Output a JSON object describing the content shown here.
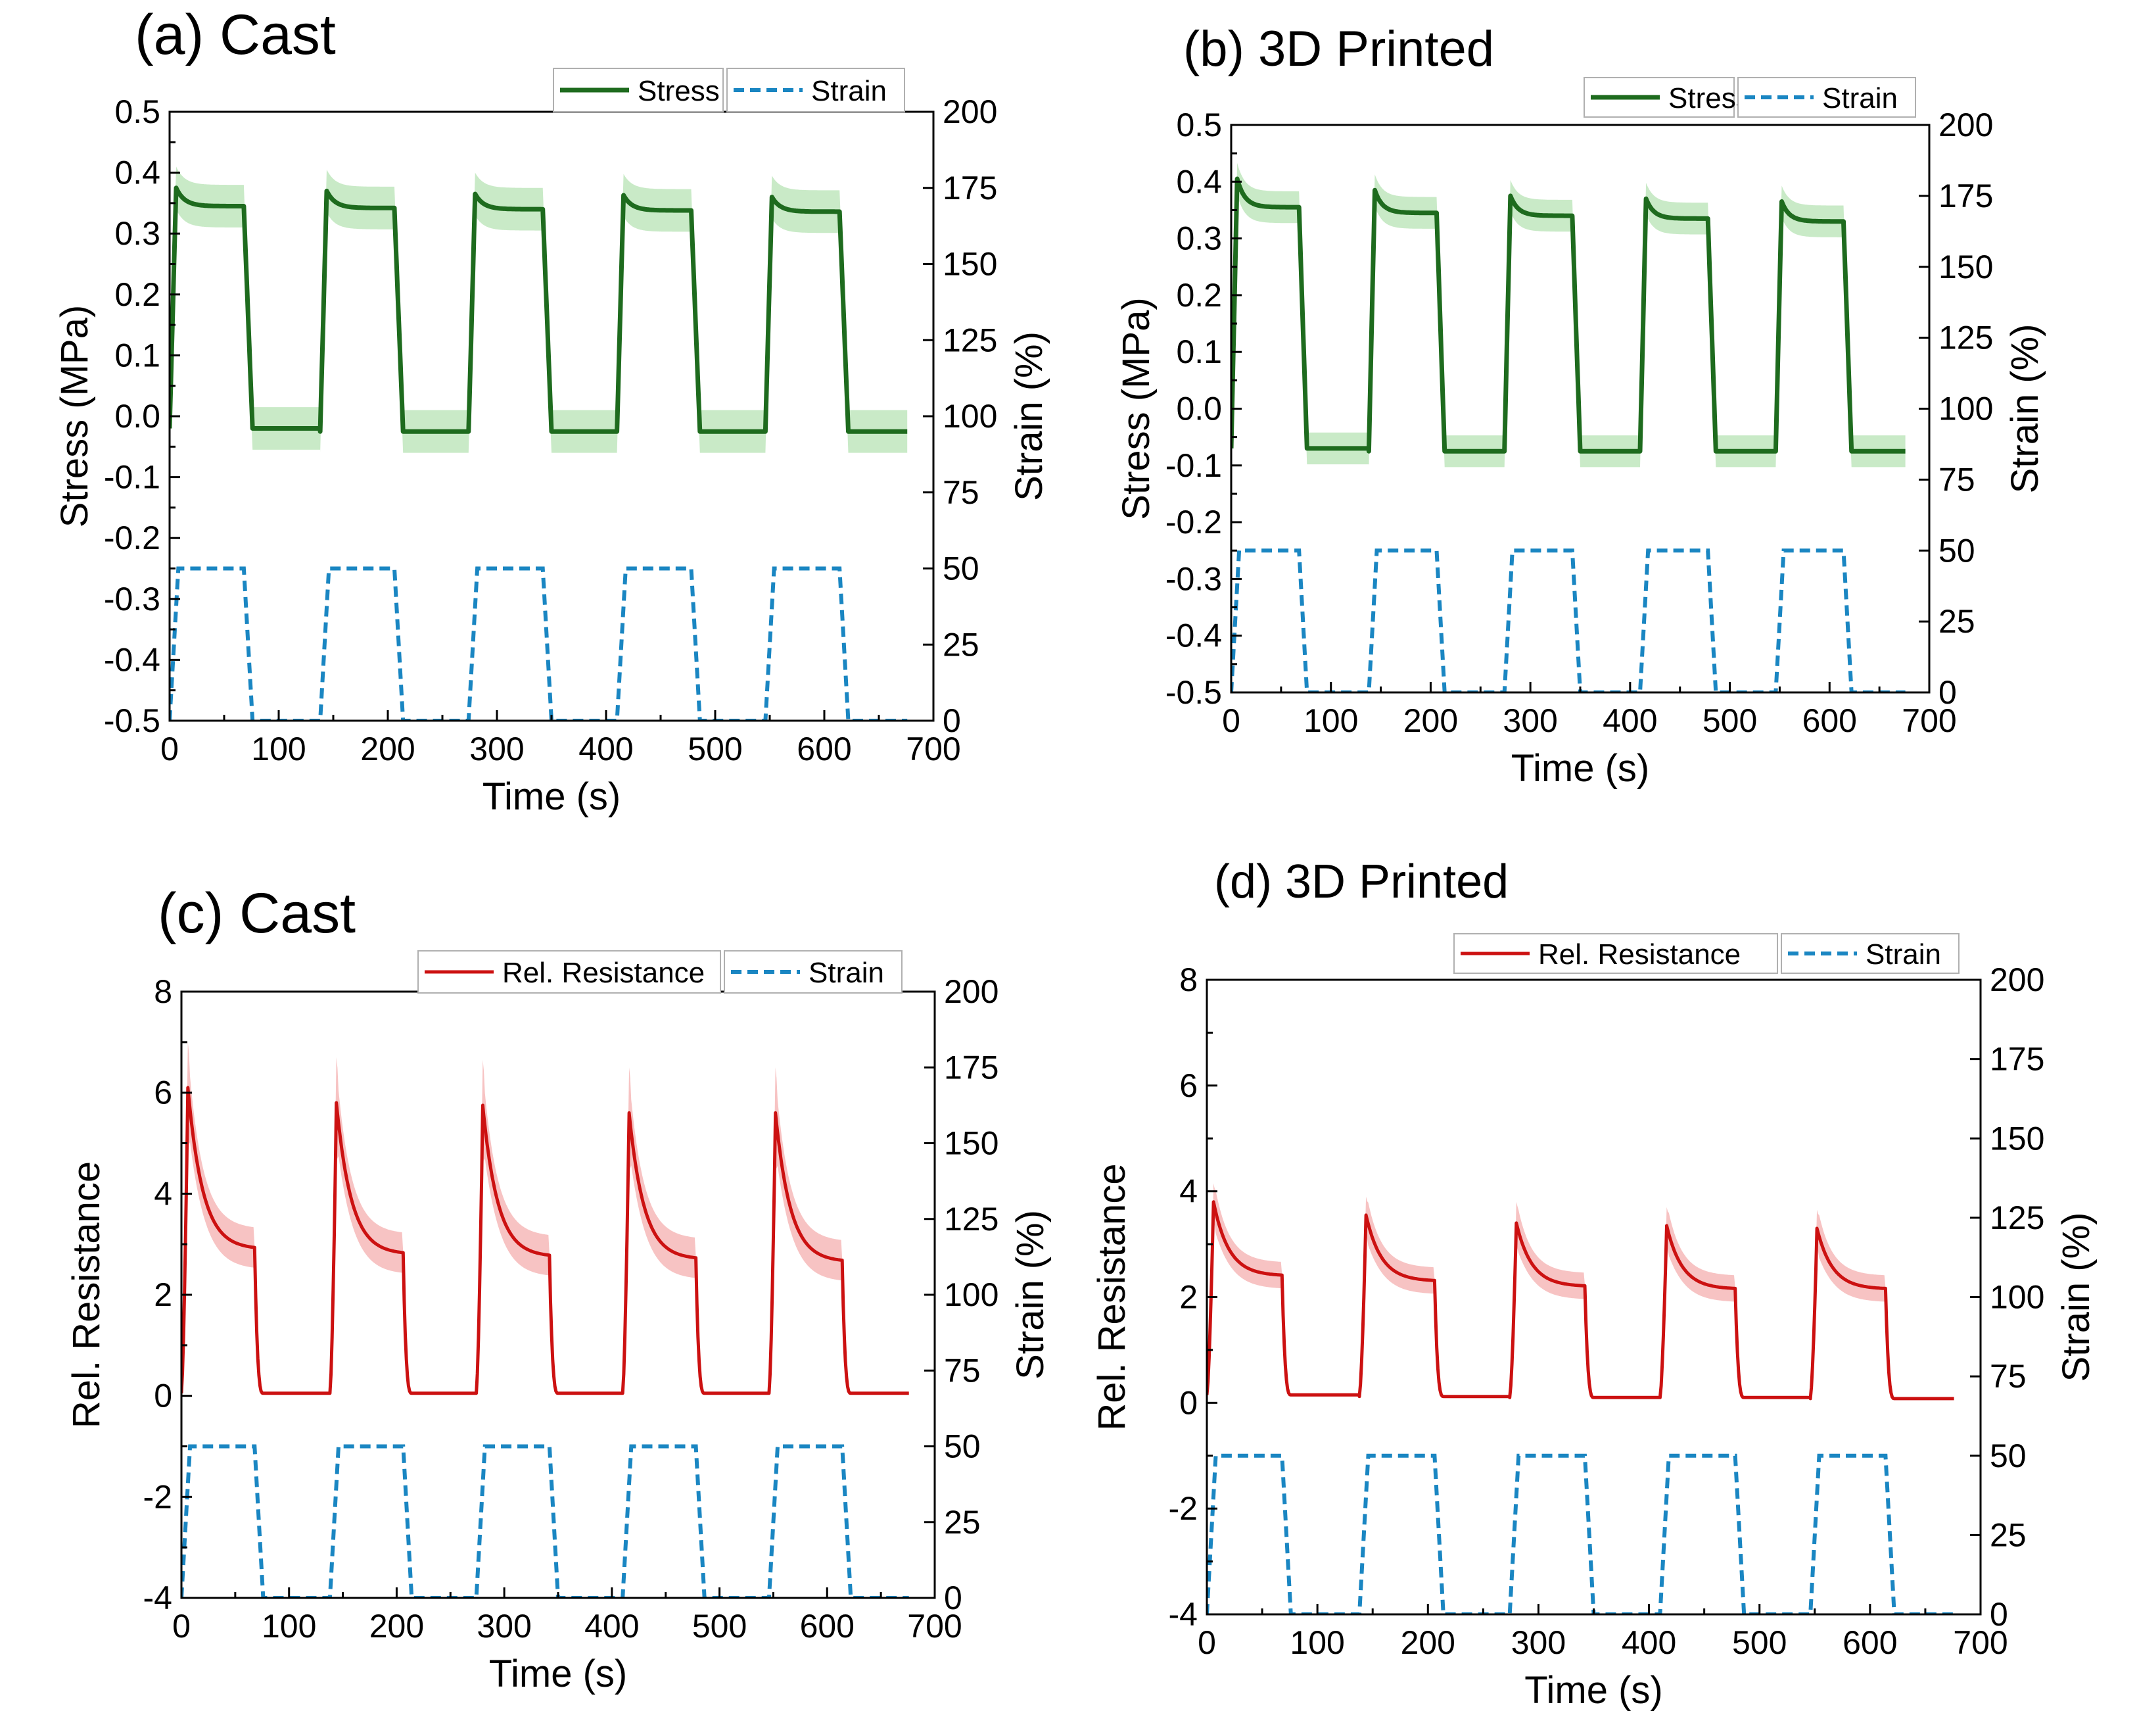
{
  "figure": {
    "description_free": true
  },
  "colors": {
    "stress": "#1e6b1e",
    "stress_band": "#b7e3b4",
    "strain": "#1a86c2",
    "resistance": "#cc1111",
    "resistance_band": "#f6b8b8",
    "axis": "#000000"
  },
  "chart_data": [
    {
      "id": "a",
      "type": "line",
      "panel_title": "(a) Cast",
      "xlabel": "Time (s)",
      "ylabel_left": "Stress (MPa)",
      "ylabel_right": "Strain (%)",
      "xlim": [
        0,
        700
      ],
      "x_ticks": [
        "0",
        "100",
        "200",
        "300",
        "400",
        "500",
        "600",
        "700"
      ],
      "ylim_left": [
        -0.5,
        0.5
      ],
      "y_ticks_left": [
        "-0.5",
        "-0.4",
        "-0.3",
        "-0.2",
        "-0.1",
        "0.0",
        "0.1",
        "0.2",
        "0.3",
        "0.4",
        "0.5"
      ],
      "ylim_right": [
        0,
        200
      ],
      "y_ticks_right": [
        "0",
        "25",
        "50",
        "75",
        "100",
        "125",
        "150",
        "175",
        "200"
      ],
      "legend": [
        "Stress",
        "Strain"
      ],
      "legend_position": "top-right",
      "primary_series": {
        "name": "Stress",
        "kind": "stress",
        "cycles": [
          {
            "start": 0,
            "peak": 0.375,
            "plateau": 0.345,
            "end": 68,
            "base": -0.02,
            "off_end": 138
          },
          {
            "start": 138,
            "peak": 0.37,
            "plateau": 0.342,
            "end": 206,
            "base": -0.025,
            "off_end": 274
          },
          {
            "start": 274,
            "peak": 0.365,
            "plateau": 0.34,
            "end": 342,
            "base": -0.025,
            "off_end": 410
          },
          {
            "start": 410,
            "peak": 0.363,
            "plateau": 0.338,
            "end": 478,
            "base": -0.025,
            "off_end": 546
          },
          {
            "start": 546,
            "peak": 0.36,
            "plateau": 0.336,
            "end": 614,
            "base": -0.025,
            "off_end": 676
          }
        ],
        "band": 0.035
      },
      "strain_series": {
        "name": "Strain",
        "max": 50,
        "min": 0,
        "cycles": [
          [
            0,
            68
          ],
          [
            138,
            206
          ],
          [
            274,
            342
          ],
          [
            410,
            478
          ],
          [
            546,
            614
          ]
        ],
        "ramp": 8,
        "end": 676
      }
    },
    {
      "id": "b",
      "type": "line",
      "panel_title": "(b) 3D Printed",
      "xlabel": "Time (s)",
      "ylabel_left": "Stress (MPa)",
      "ylabel_right": "Strain (%)",
      "xlim": [
        0,
        700
      ],
      "x_ticks": [
        "0",
        "100",
        "200",
        "300",
        "400",
        "500",
        "600",
        "700"
      ],
      "ylim_left": [
        -0.5,
        0.5
      ],
      "y_ticks_left": [
        "-0.5",
        "-0.4",
        "-0.3",
        "-0.2",
        "-0.1",
        "0.0",
        "0.1",
        "0.2",
        "0.3",
        "0.4",
        "0.5"
      ],
      "ylim_right": [
        0,
        200
      ],
      "y_ticks_right": [
        "0",
        "25",
        "50",
        "75",
        "100",
        "125",
        "150",
        "175",
        "200"
      ],
      "legend": [
        "Stress",
        "Strain"
      ],
      "legend_position": "top-right",
      "primary_series": {
        "name": "Stress",
        "kind": "stress",
        "cycles": [
          {
            "start": 0,
            "peak": 0.405,
            "plateau": 0.355,
            "end": 68,
            "base": -0.07,
            "off_end": 138
          },
          {
            "start": 138,
            "peak": 0.385,
            "plateau": 0.345,
            "end": 206,
            "base": -0.075,
            "off_end": 274
          },
          {
            "start": 274,
            "peak": 0.375,
            "plateau": 0.34,
            "end": 342,
            "base": -0.075,
            "off_end": 410
          },
          {
            "start": 410,
            "peak": 0.37,
            "plateau": 0.335,
            "end": 478,
            "base": -0.075,
            "off_end": 546
          },
          {
            "start": 546,
            "peak": 0.365,
            "plateau": 0.33,
            "end": 614,
            "base": -0.075,
            "off_end": 676
          }
        ],
        "band": 0.028
      },
      "strain_series": {
        "name": "Strain",
        "max": 50,
        "min": 0,
        "cycles": [
          [
            0,
            68
          ],
          [
            138,
            206
          ],
          [
            274,
            342
          ],
          [
            410,
            478
          ],
          [
            546,
            614
          ]
        ],
        "ramp": 8,
        "end": 676
      }
    },
    {
      "id": "c",
      "type": "line",
      "panel_title": "(c) Cast",
      "xlabel": "Time (s)",
      "ylabel_left": "Rel. Resistance",
      "ylabel_right": "Strain (%)",
      "xlim": [
        0,
        700
      ],
      "x_ticks": [
        "0",
        "100",
        "200",
        "300",
        "400",
        "500",
        "600",
        "700"
      ],
      "ylim_left": [
        -4,
        8
      ],
      "y_ticks_left": [
        "-4",
        "-2",
        "0",
        "2",
        "4",
        "6",
        "8"
      ],
      "ylim_right": [
        0,
        200
      ],
      "y_ticks_right": [
        "0",
        "25",
        "50",
        "75",
        "100",
        "125",
        "150",
        "175",
        "200"
      ],
      "legend": [
        "Rel. Resistance",
        "Strain"
      ],
      "legend_position": "top-right",
      "primary_series": {
        "name": "Rel. Resistance",
        "kind": "resistance",
        "cycles": [
          {
            "start": 0,
            "peak": 6.1,
            "plateau": 2.9,
            "end": 68,
            "base": 0.05,
            "off_end": 138,
            "band_peak": 7.0
          },
          {
            "start": 138,
            "peak": 5.8,
            "plateau": 2.8,
            "end": 206,
            "base": 0.05,
            "off_end": 274,
            "band_peak": 6.7
          },
          {
            "start": 274,
            "peak": 5.75,
            "plateau": 2.75,
            "end": 342,
            "base": 0.05,
            "off_end": 410,
            "band_peak": 6.65
          },
          {
            "start": 410,
            "peak": 5.6,
            "plateau": 2.7,
            "end": 478,
            "base": 0.05,
            "off_end": 546,
            "band_peak": 6.5
          },
          {
            "start": 546,
            "peak": 5.6,
            "plateau": 2.65,
            "end": 614,
            "base": 0.05,
            "off_end": 676,
            "band_peak": 6.5
          }
        ],
        "band": 0.4
      },
      "strain_series": {
        "name": "Strain",
        "max": 50,
        "min": 0,
        "cycles": [
          [
            0,
            68
          ],
          [
            138,
            206
          ],
          [
            274,
            342
          ],
          [
            410,
            478
          ],
          [
            546,
            614
          ]
        ],
        "ramp": 8,
        "end": 676
      }
    },
    {
      "id": "d",
      "type": "line",
      "panel_title": "(d) 3D Printed",
      "xlabel": "Time (s)",
      "ylabel_left": "Rel. Resistance",
      "ylabel_right": "Strain (%)",
      "xlim": [
        0,
        700
      ],
      "x_ticks": [
        "0",
        "100",
        "200",
        "300",
        "400",
        "500",
        "600",
        "700"
      ],
      "ylim_left": [
        -4,
        8
      ],
      "y_ticks_left": [
        "-4",
        "-2",
        "0",
        "2",
        "4",
        "6",
        "8"
      ],
      "ylim_right": [
        0,
        200
      ],
      "y_ticks_right": [
        "0",
        "25",
        "50",
        "75",
        "100",
        "125",
        "150",
        "175",
        "200"
      ],
      "legend": [
        "Rel. Resistance",
        "Strain"
      ],
      "legend_position": "top-right",
      "primary_series": {
        "name": "Rel. Resistance",
        "kind": "resistance",
        "cycles": [
          {
            "start": 0,
            "peak": 3.8,
            "plateau": 2.4,
            "end": 68,
            "base": 0.15,
            "off_end": 138,
            "band_peak": 4.15
          },
          {
            "start": 138,
            "peak": 3.55,
            "plateau": 2.3,
            "end": 206,
            "base": 0.12,
            "off_end": 274,
            "band_peak": 3.9
          },
          {
            "start": 274,
            "peak": 3.4,
            "plateau": 2.2,
            "end": 342,
            "base": 0.1,
            "off_end": 410,
            "band_peak": 3.8
          },
          {
            "start": 410,
            "peak": 3.35,
            "plateau": 2.15,
            "end": 478,
            "base": 0.1,
            "off_end": 546,
            "band_peak": 3.7
          },
          {
            "start": 546,
            "peak": 3.3,
            "plateau": 2.15,
            "end": 614,
            "base": 0.08,
            "off_end": 676,
            "band_peak": 3.65
          }
        ],
        "band": 0.25
      },
      "strain_series": {
        "name": "Strain",
        "max": 50,
        "min": 0,
        "cycles": [
          [
            0,
            68
          ],
          [
            138,
            206
          ],
          [
            274,
            342
          ],
          [
            410,
            478
          ],
          [
            546,
            614
          ]
        ],
        "ramp": 8,
        "end": 676
      }
    }
  ]
}
